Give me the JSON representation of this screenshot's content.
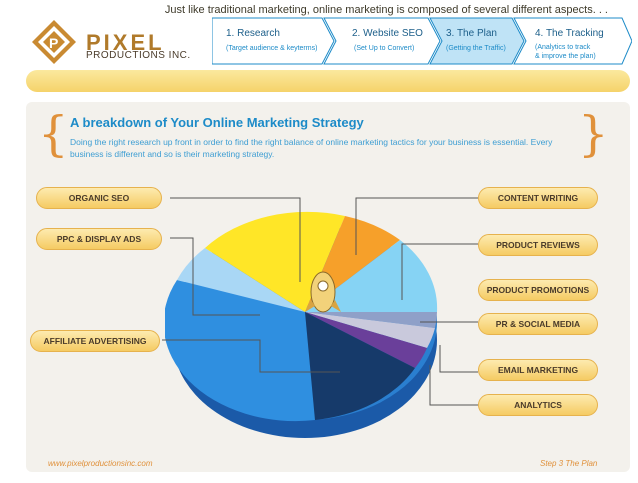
{
  "logo": {
    "name": "PIXEL",
    "sub": "PRODUCTIONS INC."
  },
  "steps": [
    {
      "title": "1. Research",
      "sub": "(Target audience & keyterms)"
    },
    {
      "title": "2. Website SEO",
      "sub": "(Set Up to Convert)"
    },
    {
      "title": "3. The Plan",
      "sub": "(Getting the Traffic)"
    },
    {
      "title": "4. The Tracking",
      "sub1": "(Analytics to track",
      "sub2": "& improve the plan)"
    }
  ],
  "banner": "Just like traditional marketing, online marketing is composed of several different aspects. . .",
  "heading": "A breakdown of Your Online Marketing Strategy",
  "description": "Doing the right research up front in order to find the right balance of online marketing tactics for your business is essential.  Every business is different and so is their marketing strategy.",
  "labels_left": [
    "ORGANIC SEO",
    "PPC & DISPLAY ADS",
    "AFFILIATE ADVERTISING"
  ],
  "labels_right": [
    "CONTENT WRITING",
    "PRODUCT REVIEWS",
    "PRODUCT PROMOTIONS",
    "PR & SOCIAL MEDIA",
    "EMAIL MARKETING",
    "ANALYTICS"
  ],
  "footer": {
    "url": "www.pixelproductionsinc.com",
    "step": "Step 3 The Plan"
  },
  "colors": {
    "orange": "#e0913b",
    "blue": "#1d8bc8",
    "gold": "#f5cb63"
  }
}
